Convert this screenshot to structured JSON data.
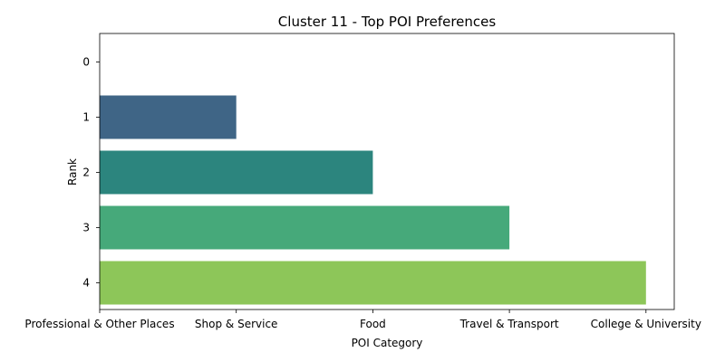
{
  "chart_data": {
    "type": "bar",
    "orientation": "horizontal",
    "title": "Cluster 11 - Top POI Preferences",
    "xlabel": "POI Category",
    "ylabel": "Rank",
    "x_categories": [
      "Professional & Other Places",
      "Shop & Service",
      "Food",
      "Travel & Transport",
      "College & University"
    ],
    "y_ticks": [
      "0",
      "1",
      "2",
      "3",
      "4"
    ],
    "bars": [
      {
        "rank": 1,
        "category": "Shop & Service",
        "color": "#3f6586"
      },
      {
        "rank": 2,
        "category": "Food",
        "color": "#2c857e"
      },
      {
        "rank": 3,
        "category": "Travel & Transport",
        "color": "#46a97a"
      },
      {
        "rank": 4,
        "category": "College & University",
        "color": "#8dc659"
      }
    ],
    "grid": false,
    "legend": "none"
  }
}
